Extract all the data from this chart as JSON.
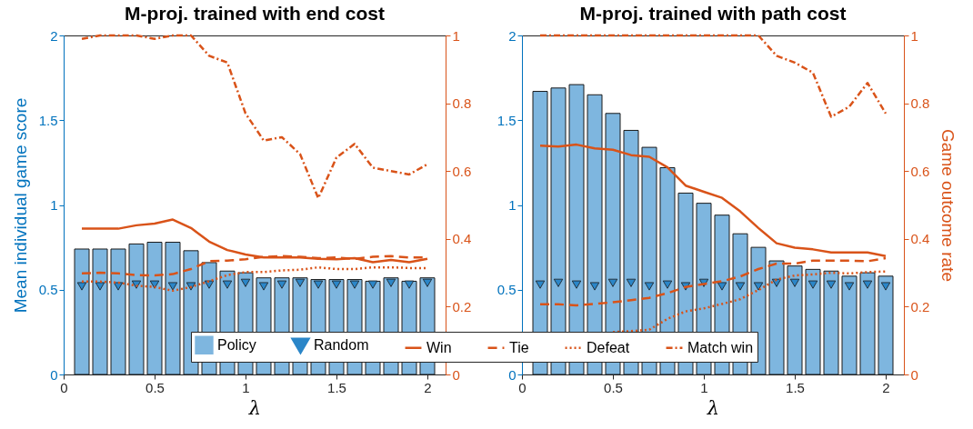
{
  "chart_data": [
    {
      "type": "bar",
      "title": "M-proj. trained with end cost",
      "xlabel": "λ",
      "ylabel": "Mean individual game score",
      "x": [
        0.1,
        0.2,
        0.3,
        0.4,
        0.5,
        0.6,
        0.7,
        0.8,
        0.9,
        1.0,
        1.1,
        1.2,
        1.3,
        1.4,
        1.5,
        1.6,
        1.7,
        1.8,
        1.9,
        2.0
      ],
      "xlim": [
        0,
        2.1
      ],
      "xticks": [
        0,
        0.5,
        1,
        1.5,
        2
      ],
      "ylim": [
        0,
        2
      ],
      "yticks": [
        0,
        0.5,
        1,
        1.5,
        2
      ],
      "y2lim": [
        0,
        1
      ],
      "y2ticks": [
        0,
        0.2,
        0.4,
        0.6,
        0.8,
        1
      ],
      "grid": false,
      "legend": "bottom",
      "series": [
        {
          "name": "Policy",
          "type": "bar",
          "color": "#7eb6df",
          "values": [
            0.74,
            0.74,
            0.74,
            0.77,
            0.78,
            0.78,
            0.73,
            0.66,
            0.61,
            0.6,
            0.57,
            0.57,
            0.57,
            0.56,
            0.56,
            0.56,
            0.55,
            0.57,
            0.55,
            0.57
          ]
        },
        {
          "name": "Random",
          "type": "scatter",
          "marker": "triangle",
          "color": "#2b86c8",
          "values": [
            0.52,
            0.52,
            0.52,
            0.53,
            0.53,
            0.52,
            0.52,
            0.53,
            0.53,
            0.54,
            0.52,
            0.53,
            0.54,
            0.53,
            0.53,
            0.53,
            0.53,
            0.54,
            0.53,
            0.54
          ]
        },
        {
          "name": "Win",
          "type": "line",
          "axis": "y2",
          "line_style": "solid",
          "color": "#d95319",
          "values": [
            0.43,
            0.43,
            0.43,
            0.44,
            0.445,
            0.457,
            0.432,
            0.392,
            0.367,
            0.354,
            0.345,
            0.345,
            0.345,
            0.341,
            0.34,
            0.343,
            0.331,
            0.338,
            0.331,
            0.341
          ]
        },
        {
          "name": "Tie",
          "type": "line",
          "axis": "y2",
          "line_style": "dashed",
          "color": "#d95319",
          "values": [
            0.298,
            0.3,
            0.298,
            0.293,
            0.292,
            0.296,
            0.311,
            0.334,
            0.336,
            0.34,
            0.347,
            0.349,
            0.347,
            0.343,
            0.345,
            0.341,
            0.347,
            0.349,
            0.345,
            0.345
          ]
        },
        {
          "name": "Defeat",
          "type": "line",
          "axis": "y2",
          "line_style": "dotted",
          "color": "#d95319",
          "values": [
            0.274,
            0.274,
            0.271,
            0.262,
            0.258,
            0.247,
            0.258,
            0.275,
            0.293,
            0.302,
            0.302,
            0.307,
            0.309,
            0.316,
            0.311,
            0.311,
            0.316,
            0.316,
            0.314,
            0.314
          ]
        },
        {
          "name": "Match win",
          "type": "line",
          "axis": "y2",
          "line_style": "dashdot",
          "color": "#d95319",
          "values": [
            0.99,
            1.0,
            1.0,
            1.0,
            0.99,
            1.0,
            1.0,
            0.94,
            0.92,
            0.77,
            0.69,
            0.7,
            0.65,
            0.52,
            0.64,
            0.68,
            0.61,
            0.6,
            0.59,
            0.62
          ]
        }
      ]
    },
    {
      "type": "bar",
      "title": "M-proj. trained with path cost",
      "xlabel": "λ",
      "y2label": "Game outcome rate",
      "x": [
        0.1,
        0.2,
        0.3,
        0.4,
        0.5,
        0.6,
        0.7,
        0.8,
        0.9,
        1.0,
        1.1,
        1.2,
        1.3,
        1.4,
        1.5,
        1.6,
        1.7,
        1.8,
        1.9,
        2.0
      ],
      "xlim": [
        0,
        2.1
      ],
      "xticks": [
        0,
        0.5,
        1,
        1.5,
        2
      ],
      "ylim": [
        0,
        2
      ],
      "yticks": [
        0,
        0.5,
        1,
        1.5,
        2
      ],
      "y2lim": [
        0,
        1
      ],
      "y2ticks": [
        0,
        0.2,
        0.4,
        0.6,
        0.8,
        1
      ],
      "grid": false,
      "legend": "bottom",
      "series": [
        {
          "name": "Policy",
          "type": "bar",
          "color": "#7eb6df",
          "values": [
            1.67,
            1.69,
            1.71,
            1.65,
            1.54,
            1.44,
            1.34,
            1.22,
            1.07,
            1.01,
            0.94,
            0.83,
            0.75,
            0.67,
            0.64,
            0.62,
            0.61,
            0.58,
            0.6,
            0.58
          ]
        },
        {
          "name": "Random",
          "type": "scatter",
          "marker": "triangle",
          "color": "#2b86c8",
          "values": [
            0.53,
            0.54,
            0.53,
            0.52,
            0.54,
            0.54,
            0.52,
            0.53,
            0.52,
            0.54,
            0.52,
            0.52,
            0.52,
            0.54,
            0.54,
            0.53,
            0.53,
            0.52,
            0.53,
            0.52
          ]
        },
        {
          "name": "Win",
          "type": "line",
          "axis": "y2",
          "line_style": "solid",
          "color": "#d95319",
          "values": [
            0.675,
            0.672,
            0.678,
            0.667,
            0.663,
            0.647,
            0.642,
            0.611,
            0.557,
            0.539,
            0.521,
            0.481,
            0.432,
            0.387,
            0.374,
            0.369,
            0.36,
            0.36,
            0.36,
            0.349
          ]
        },
        {
          "name": "Tie",
          "type": "line",
          "axis": "y2",
          "line_style": "dashed",
          "color": "#d95319",
          "values": [
            0.207,
            0.207,
            0.204,
            0.208,
            0.213,
            0.219,
            0.226,
            0.24,
            0.258,
            0.267,
            0.275,
            0.289,
            0.311,
            0.327,
            0.327,
            0.336,
            0.336,
            0.336,
            0.334,
            0.343
          ]
        },
        {
          "name": "Defeat",
          "type": "line",
          "axis": "y2",
          "line_style": "dotted",
          "color": "#d95319",
          "values": [
            null,
            null,
            null,
            null,
            0.125,
            0.128,
            0.132,
            0.164,
            0.186,
            0.195,
            0.208,
            0.222,
            0.249,
            0.28,
            0.292,
            0.295,
            0.3,
            0.298,
            0.302,
            0.304
          ]
        },
        {
          "name": "Match win",
          "type": "line",
          "axis": "y2",
          "line_style": "dashdot",
          "color": "#d95319",
          "values": [
            1.0,
            1.0,
            1.0,
            1.0,
            1.0,
            1.0,
            1.0,
            1.0,
            1.0,
            1.0,
            1.0,
            1.0,
            1.0,
            0.94,
            0.92,
            0.89,
            0.76,
            0.79,
            0.86,
            0.77
          ]
        }
      ]
    }
  ]
}
